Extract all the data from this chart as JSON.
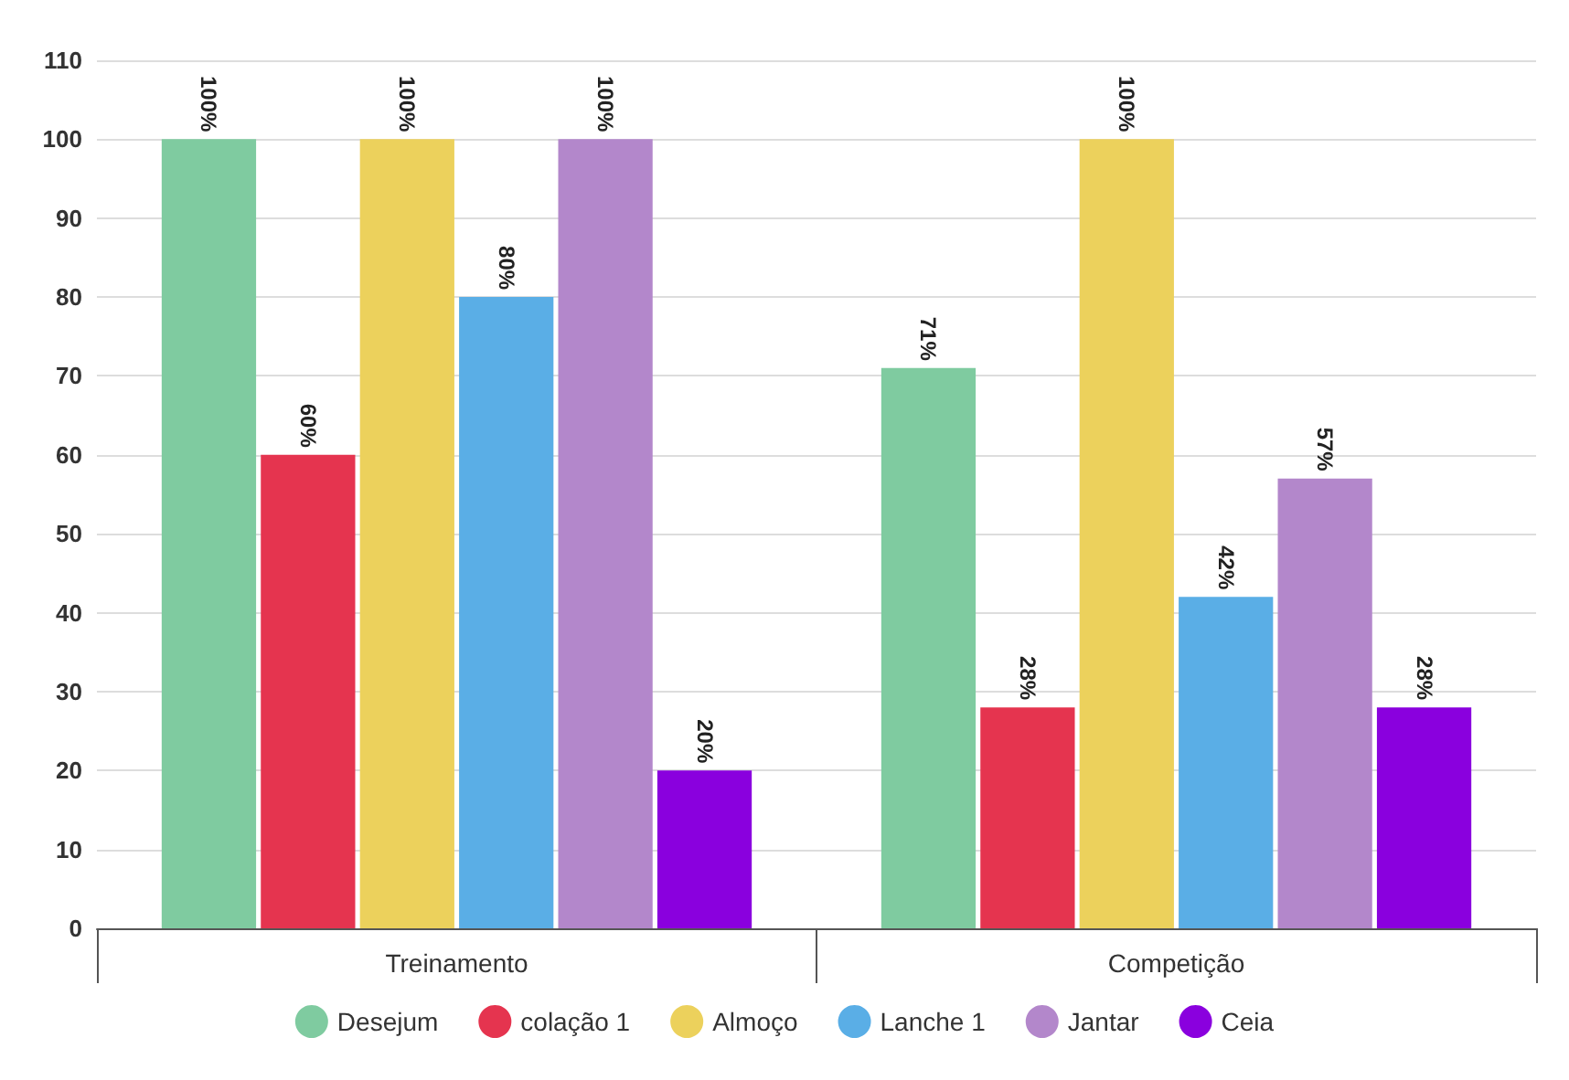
{
  "chart_data": {
    "type": "bar",
    "categories": [
      "Treinamento",
      "Competição"
    ],
    "series": [
      {
        "name": "Desejum",
        "color": "#7fcba0",
        "values": [
          100,
          71
        ],
        "value_labels": [
          "100%",
          "71%"
        ]
      },
      {
        "name": "colação 1",
        "color": "#e5344f",
        "values": [
          60,
          28
        ],
        "value_labels": [
          "60%",
          "28%"
        ]
      },
      {
        "name": "Almoço",
        "color": "#ecd15c",
        "values": [
          100,
          100
        ],
        "value_labels": [
          "100%",
          "100%"
        ]
      },
      {
        "name": "Lanche 1",
        "color": "#5aaee6",
        "values": [
          80,
          42
        ],
        "value_labels": [
          "80%",
          "42%"
        ]
      },
      {
        "name": "Jantar",
        "color": "#b387cb",
        "values": [
          100,
          57
        ],
        "value_labels": [
          "100%",
          "57%"
        ]
      },
      {
        "name": "Ceia",
        "color": "#8a00de",
        "values": [
          20,
          28
        ],
        "value_labels": [
          "20%",
          "28%"
        ]
      }
    ],
    "ylim": [
      0,
      110
    ],
    "yticks": [
      0,
      10,
      20,
      30,
      40,
      50,
      60,
      70,
      80,
      90,
      100,
      110
    ],
    "grid": "y",
    "legend": "bottom"
  }
}
